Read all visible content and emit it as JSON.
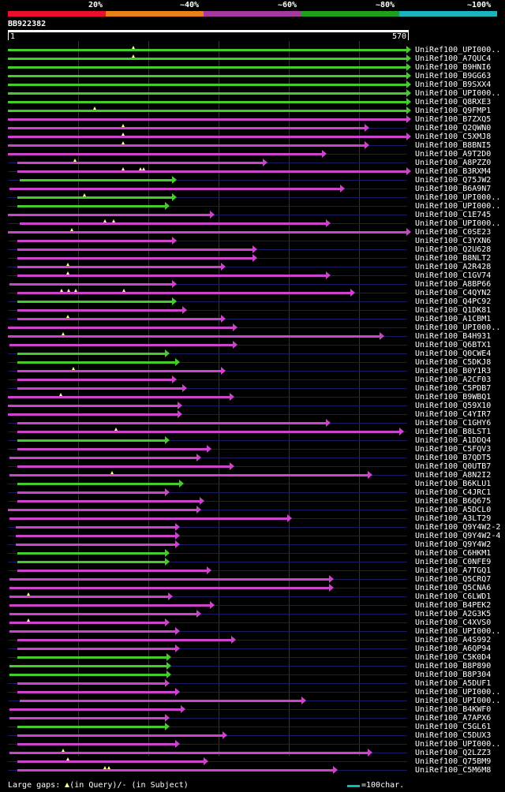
{
  "colors": {
    "scale": [
      "#e8102c",
      "#e8801a",
      "#a23aa0",
      "#1ea01e",
      "#1ab4be"
    ],
    "high": "#44cc2c",
    "low": "#cc44cc",
    "baseline": "#1a1a5e",
    "gap": "#ffff88"
  },
  "scale_labels": [
    "20%",
    "~40%",
    "~60%",
    "~80%",
    "~100%"
  ],
  "query": {
    "name": "BB922382",
    "start": "1",
    "end": "570"
  },
  "hits": [
    {
      "label": "UniRef100_UPI000..",
      "start": 1,
      "end": 570,
      "identity": "high",
      "gaps": [
        180
      ]
    },
    {
      "label": "UniRef100_A7QUC4",
      "start": 1,
      "end": 570,
      "identity": "high",
      "gaps": [
        180
      ]
    },
    {
      "label": "UniRef100_B9HNI6",
      "start": 1,
      "end": 570,
      "identity": "high",
      "gaps": []
    },
    {
      "label": "UniRef100_B9GG63",
      "start": 1,
      "end": 570,
      "identity": "high",
      "gaps": []
    },
    {
      "label": "UniRef100_B9SXX4",
      "start": 1,
      "end": 570,
      "identity": "high",
      "gaps": []
    },
    {
      "label": "UniRef100_UPI000..",
      "start": 1,
      "end": 570,
      "identity": "high",
      "gaps": []
    },
    {
      "label": "UniRef100_Q8RXE3",
      "start": 1,
      "end": 570,
      "identity": "high",
      "gaps": []
    },
    {
      "label": "UniRef100_Q9FMP1",
      "start": 1,
      "end": 570,
      "identity": "high",
      "gaps": [
        125
      ]
    },
    {
      "label": "UniRef100_B7ZXQ5",
      "start": 1,
      "end": 570,
      "identity": "low",
      "gaps": []
    },
    {
      "label": "UniRef100_Q2QWN0",
      "start": 1,
      "end": 510,
      "identity": "low",
      "gaps": [
        165
      ]
    },
    {
      "label": "UniRef100_C5XMJ8",
      "start": 1,
      "end": 570,
      "identity": "low",
      "gaps": [
        165
      ]
    },
    {
      "label": "UniRef100_B8BNI5",
      "start": 1,
      "end": 510,
      "identity": "low",
      "gaps": [
        165
      ]
    },
    {
      "label": "UniRef100_A9T2D0",
      "start": 1,
      "end": 450,
      "identity": "low",
      "gaps": []
    },
    {
      "label": "UniRef100_A8PZZ0",
      "start": 15,
      "end": 365,
      "identity": "low",
      "gaps": [
        97
      ]
    },
    {
      "label": "UniRef100_B3RXM4",
      "start": 15,
      "end": 570,
      "identity": "low",
      "gaps": [
        165,
        190,
        195
      ]
    },
    {
      "label": "UniRef100_Q75JW2",
      "start": 18,
      "end": 235,
      "identity": "high",
      "gaps": []
    },
    {
      "label": "UniRef100_B6A9N7",
      "start": 3,
      "end": 475,
      "identity": "low",
      "gaps": []
    },
    {
      "label": "UniRef100_UPI000..",
      "start": 15,
      "end": 235,
      "identity": "high",
      "gaps": [
        110
      ]
    },
    {
      "label": "UniRef100_UPI000..",
      "start": 15,
      "end": 225,
      "identity": "high",
      "gaps": []
    },
    {
      "label": "UniRef100_C1E745",
      "start": 1,
      "end": 290,
      "identity": "low",
      "gaps": []
    },
    {
      "label": "UniRef100_UPI000..",
      "start": 18,
      "end": 455,
      "identity": "low",
      "gaps": [
        140,
        152
      ]
    },
    {
      "label": "UniRef100_C0SE23",
      "start": 1,
      "end": 570,
      "identity": "low",
      "gaps": [
        92
      ]
    },
    {
      "label": "UniRef100_C3YXN6",
      "start": 15,
      "end": 235,
      "identity": "low",
      "gaps": []
    },
    {
      "label": "UniRef100_Q2U628",
      "start": 15,
      "end": 350,
      "identity": "low",
      "gaps": []
    },
    {
      "label": "UniRef100_B8NLT2",
      "start": 15,
      "end": 350,
      "identity": "low",
      "gaps": []
    },
    {
      "label": "UniRef100_A2R428",
      "start": 15,
      "end": 305,
      "identity": "low",
      "gaps": [
        87
      ]
    },
    {
      "label": "UniRef100_C1GV74",
      "start": 15,
      "end": 455,
      "identity": "low",
      "gaps": [
        87
      ]
    },
    {
      "label": "UniRef100_A8BP66",
      "start": 3,
      "end": 235,
      "identity": "low",
      "gaps": []
    },
    {
      "label": "UniRef100_C4QYN2",
      "start": 15,
      "end": 490,
      "identity": "low",
      "gaps": [
        78,
        88,
        98,
        167
      ]
    },
    {
      "label": "UniRef100_Q4PC92",
      "start": 15,
      "end": 235,
      "identity": "high",
      "gaps": []
    },
    {
      "label": "UniRef100_Q1DK81",
      "start": 15,
      "end": 250,
      "identity": "low",
      "gaps": []
    },
    {
      "label": "UniRef100_A1CBM1",
      "start": 15,
      "end": 305,
      "identity": "low",
      "gaps": [
        87
      ]
    },
    {
      "label": "UniRef100_UPI000..",
      "start": 1,
      "end": 322,
      "identity": "low",
      "gaps": []
    },
    {
      "label": "UniRef100_B4H931",
      "start": 1,
      "end": 532,
      "identity": "low",
      "gaps": [
        80
      ]
    },
    {
      "label": "UniRef100_Q6BTX1",
      "start": 3,
      "end": 322,
      "identity": "low",
      "gaps": []
    },
    {
      "label": "UniRef100_Q0CWE4",
      "start": 15,
      "end": 225,
      "identity": "high",
      "gaps": []
    },
    {
      "label": "UniRef100_C5DKJ8",
      "start": 15,
      "end": 240,
      "identity": "high",
      "gaps": []
    },
    {
      "label": "UniRef100_B0Y1R3",
      "start": 15,
      "end": 305,
      "identity": "low",
      "gaps": [
        95
      ]
    },
    {
      "label": "UniRef100_A2CF03",
      "start": 15,
      "end": 235,
      "identity": "low",
      "gaps": []
    },
    {
      "label": "UniRef100_C5PDB7",
      "start": 15,
      "end": 250,
      "identity": "low",
      "gaps": []
    },
    {
      "label": "UniRef100_B9WBQ1",
      "start": 1,
      "end": 318,
      "identity": "low",
      "gaps": [
        77
      ]
    },
    {
      "label": "UniRef100_Q59X10",
      "start": 1,
      "end": 243,
      "identity": "low",
      "gaps": []
    },
    {
      "label": "UniRef100_C4YIR7",
      "start": 1,
      "end": 243,
      "identity": "low",
      "gaps": []
    },
    {
      "label": "UniRef100_C1GHY6",
      "start": 15,
      "end": 455,
      "identity": "low",
      "gaps": []
    },
    {
      "label": "UniRef100_B8LST1",
      "start": 15,
      "end": 560,
      "identity": "low",
      "gaps": [
        155
      ]
    },
    {
      "label": "UniRef100_A1DDQ4",
      "start": 15,
      "end": 225,
      "identity": "high",
      "gaps": []
    },
    {
      "label": "UniRef100_C5FQV3",
      "start": 15,
      "end": 285,
      "identity": "low",
      "gaps": []
    },
    {
      "label": "UniRef100_B7QDT5",
      "start": 3,
      "end": 270,
      "identity": "low",
      "gaps": []
    },
    {
      "label": "UniRef100_Q0UTB7",
      "start": 15,
      "end": 318,
      "identity": "low",
      "gaps": []
    },
    {
      "label": "UniRef100_A8N2I2",
      "start": 3,
      "end": 515,
      "identity": "low",
      "gaps": [
        150
      ]
    },
    {
      "label": "UniRef100_B6KLU1",
      "start": 15,
      "end": 245,
      "identity": "high",
      "gaps": []
    },
    {
      "label": "UniRef100_C4JRC1",
      "start": 15,
      "end": 225,
      "identity": "low",
      "gaps": []
    },
    {
      "label": "UniRef100_B6Q675",
      "start": 15,
      "end": 275,
      "identity": "low",
      "gaps": []
    },
    {
      "label": "UniRef100_A5DCL0",
      "start": 1,
      "end": 270,
      "identity": "low",
      "gaps": []
    },
    {
      "label": "UniRef100_A3LT29",
      "start": 3,
      "end": 400,
      "identity": "low",
      "gaps": []
    },
    {
      "label": "UniRef100_Q9Y4W2-2",
      "start": 12,
      "end": 240,
      "identity": "low",
      "gaps": []
    },
    {
      "label": "UniRef100_Q9Y4W2-4",
      "start": 12,
      "end": 240,
      "identity": "low",
      "gaps": []
    },
    {
      "label": "UniRef100_Q9Y4W2",
      "start": 12,
      "end": 240,
      "identity": "low",
      "gaps": []
    },
    {
      "label": "UniRef100_C6HKM1",
      "start": 15,
      "end": 225,
      "identity": "high",
      "gaps": []
    },
    {
      "label": "UniRef100_C0NFE9",
      "start": 15,
      "end": 225,
      "identity": "high",
      "gaps": []
    },
    {
      "label": "UniRef100_A7TGQ1",
      "start": 15,
      "end": 285,
      "identity": "low",
      "gaps": []
    },
    {
      "label": "UniRef100_Q5CRQ7",
      "start": 3,
      "end": 460,
      "identity": "low",
      "gaps": []
    },
    {
      "label": "UniRef100_Q5CNA6",
      "start": 3,
      "end": 460,
      "identity": "low",
      "gaps": []
    },
    {
      "label": "UniRef100_C6LWD1",
      "start": 3,
      "end": 230,
      "identity": "low",
      "gaps": [
        30
      ]
    },
    {
      "label": "UniRef100_B4PEK2",
      "start": 3,
      "end": 290,
      "identity": "low",
      "gaps": []
    },
    {
      "label": "UniRef100_A2G3K5",
      "start": 3,
      "end": 270,
      "identity": "low",
      "gaps": []
    },
    {
      "label": "UniRef100_C4XVS0",
      "start": 3,
      "end": 225,
      "identity": "low",
      "gaps": [
        30
      ]
    },
    {
      "label": "UniRef100_UPI000..",
      "start": 3,
      "end": 240,
      "identity": "low",
      "gaps": []
    },
    {
      "label": "UniRef100_A4S992",
      "start": 15,
      "end": 320,
      "identity": "low",
      "gaps": []
    },
    {
      "label": "UniRef100_A6QP94",
      "start": 15,
      "end": 240,
      "identity": "low",
      "gaps": []
    },
    {
      "label": "UniRef100_C5K0D4",
      "start": 15,
      "end": 228,
      "identity": "high",
      "gaps": []
    },
    {
      "label": "UniRef100_B8P890",
      "start": 3,
      "end": 228,
      "identity": "high",
      "gaps": []
    },
    {
      "label": "UniRef100_B8P304",
      "start": 3,
      "end": 228,
      "identity": "high",
      "gaps": []
    },
    {
      "label": "UniRef100_A5DUF1",
      "start": 15,
      "end": 225,
      "identity": "low",
      "gaps": []
    },
    {
      "label": "UniRef100_UPI000..",
      "start": 15,
      "end": 240,
      "identity": "low",
      "gaps": []
    },
    {
      "label": "UniRef100_UPI000..",
      "start": 18,
      "end": 420,
      "identity": "low",
      "gaps": []
    },
    {
      "label": "UniRef100_B4KWF0",
      "start": 3,
      "end": 248,
      "identity": "low",
      "gaps": []
    },
    {
      "label": "UniRef100_A7APX6",
      "start": 3,
      "end": 225,
      "identity": "low",
      "gaps": []
    },
    {
      "label": "UniRef100_C5GL61",
      "start": 15,
      "end": 225,
      "identity": "high",
      "gaps": []
    },
    {
      "label": "UniRef100_C5DUX3",
      "start": 15,
      "end": 308,
      "identity": "low",
      "gaps": []
    },
    {
      "label": "UniRef100_UPI000..",
      "start": 15,
      "end": 240,
      "identity": "low",
      "gaps": []
    },
    {
      "label": "UniRef100_Q2LZZ3",
      "start": 3,
      "end": 515,
      "identity": "low",
      "gaps": [
        80
      ]
    },
    {
      "label": "UniRef100_Q75BM9",
      "start": 15,
      "end": 280,
      "identity": "low",
      "gaps": [
        87
      ]
    },
    {
      "label": "UniRef100_C5M6M8",
      "start": 15,
      "end": 465,
      "identity": "low",
      "gaps": [
        140,
        145
      ]
    }
  ],
  "legend": {
    "gaps_prefix": "Large gaps: ",
    "gaps_suffix": "(in Query)/- (in Subject)",
    "bar_text": "=100char."
  }
}
